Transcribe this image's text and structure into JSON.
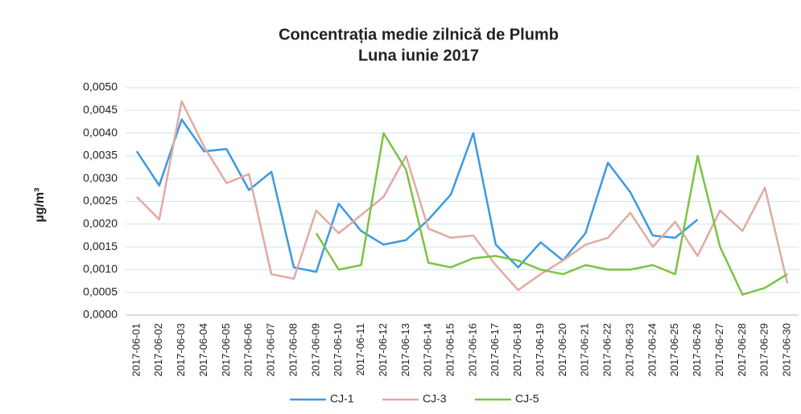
{
  "chart_data": {
    "type": "line",
    "title": "Concentrația medie zilnică de Plumb",
    "subtitle": "Luna iunie 2017",
    "y_label": "µg/m³",
    "categories": [
      "2017-06-01",
      "2017-06-02",
      "2017-06-03",
      "2017-06-04",
      "2017-06-05",
      "2017-06-06",
      "2017-06-07",
      "2017-06-08",
      "2017-06-09",
      "2017-06-10",
      "2017-06-11",
      "2017-06-12",
      "2017-06-13",
      "2017-06-14",
      "2017-06-15",
      "2017-06-16",
      "2017-06-17",
      "2017-06-18",
      "2017-06-19",
      "2017-06-20",
      "2017-06-21",
      "2017-06-22",
      "2017-06-23",
      "2017-06-24",
      "2017-06-25",
      "2017-06-26",
      "2017-06-27",
      "2017-06-28",
      "2017-06-29",
      "2017-06-30"
    ],
    "series": [
      {
        "name": "CJ-1",
        "color": "#3b9ae1",
        "values": [
          0.0036,
          0.00285,
          0.0043,
          0.0036,
          0.00365,
          0.00275,
          0.00315,
          0.00105,
          0.00095,
          0.00245,
          0.00185,
          0.00155,
          0.00165,
          0.0021,
          0.00265,
          0.004,
          0.00155,
          0.00105,
          0.0016,
          0.0012,
          0.0018,
          0.00335,
          0.0027,
          0.00175,
          0.0017,
          0.0021,
          null,
          null,
          null,
          null
        ]
      },
      {
        "name": "CJ-3",
        "color": "#e2aaa2",
        "values": [
          0.0026,
          0.0021,
          0.0047,
          0.0037,
          0.0029,
          0.0031,
          0.0009,
          0.0008,
          0.0023,
          0.0018,
          0.0022,
          0.0026,
          0.0035,
          0.0019,
          0.0017,
          0.00175,
          0.0011,
          0.00055,
          0.0009,
          0.0012,
          0.00155,
          0.0017,
          0.00225,
          0.0015,
          0.00205,
          0.0013,
          0.0023,
          0.00185,
          0.0028,
          0.0007
        ]
      },
      {
        "name": "CJ-5",
        "color": "#7dc242",
        "values": [
          null,
          null,
          null,
          null,
          null,
          null,
          null,
          null,
          0.0018,
          0.001,
          0.0011,
          0.004,
          0.0032,
          0.00115,
          0.00105,
          0.00125,
          0.0013,
          0.0012,
          0.001,
          0.0009,
          0.0011,
          0.001,
          0.001,
          0.0011,
          0.0009,
          0.0035,
          0.0015,
          0.00045,
          0.0006,
          0.0009
        ]
      }
    ],
    "ylim": [
      0,
      0.005
    ],
    "yticks": [
      {
        "value": 0,
        "label": "0,0000"
      },
      {
        "value": 0.0005,
        "label": "0,0005"
      },
      {
        "value": 0.001,
        "label": "0,0010"
      },
      {
        "value": 0.0015,
        "label": "0,0015"
      },
      {
        "value": 0.002,
        "label": "0,0020"
      },
      {
        "value": 0.0025,
        "label": "0,0025"
      },
      {
        "value": 0.003,
        "label": "0,0030"
      },
      {
        "value": 0.0035,
        "label": "0,0035"
      },
      {
        "value": 0.004,
        "label": "0,0040"
      },
      {
        "value": 0.0045,
        "label": "0,0045"
      },
      {
        "value": 0.005,
        "label": "0,0050"
      }
    ],
    "grid": true,
    "legend": "bottom"
  }
}
